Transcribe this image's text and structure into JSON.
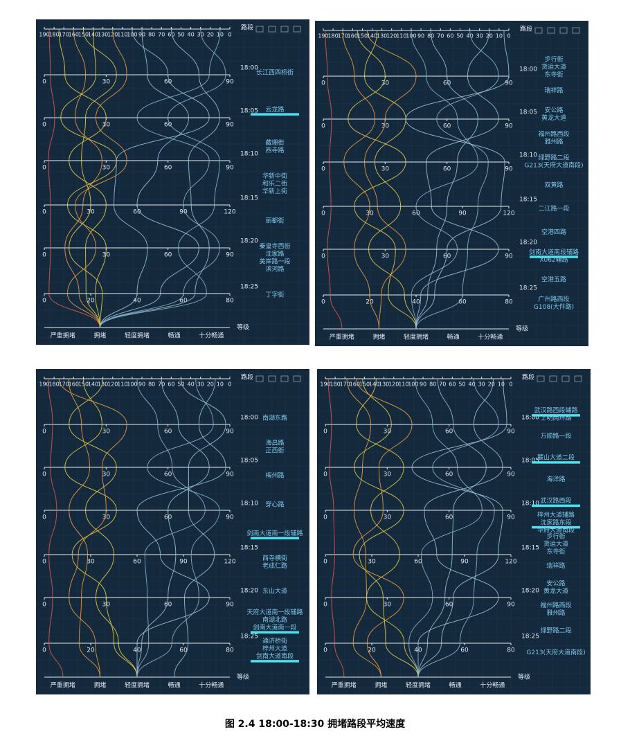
{
  "caption": "图 2.4 18:00-18:30 拥堵路段平均速度",
  "chart_data": [
    {
      "type": "parallel",
      "top_axis": {
        "name": "路段",
        "xlim": [
          190,
          0
        ],
        "ticks": [
          190,
          180,
          170,
          160,
          150,
          140,
          130,
          120,
          110,
          100,
          90,
          80,
          70,
          60,
          50,
          40,
          30,
          20,
          10,
          0
        ]
      },
      "time_axes": [
        {
          "name": "18:00",
          "lim": [
            0,
            90
          ],
          "ticks": [
            0,
            30,
            60,
            90
          ]
        },
        {
          "name": "18:05",
          "lim": [
            0,
            90
          ],
          "ticks": [
            0,
            30,
            60,
            90
          ]
        },
        {
          "name": "18:10",
          "lim": [
            0,
            90
          ],
          "ticks": [
            0,
            30,
            60,
            90
          ]
        },
        {
          "name": "18:15",
          "lim": [
            0,
            120
          ],
          "ticks": [
            0,
            30,
            60,
            90,
            120
          ]
        },
        {
          "name": "18:20",
          "lim": [
            0,
            90
          ],
          "ticks": [
            0,
            30,
            60,
            90
          ]
        },
        {
          "name": "18:25",
          "lim": [
            0,
            80
          ],
          "ticks": [
            0,
            20,
            40,
            60,
            80
          ]
        }
      ],
      "grade_axis": {
        "name": "等级",
        "categories": [
          "严重拥堵",
          "拥堵",
          "轻度拥堵",
          "畅通",
          "十分畅通"
        ]
      },
      "roads": [
        [
          "长江西四桥街"
        ],
        [
          {
            "text": "云龙路",
            "highlight": true
          }
        ],
        [
          "藏珊街",
          "西寺路"
        ],
        [
          "华新中街",
          "和乐二街",
          "华新上街"
        ],
        [
          "丽都街"
        ],
        [
          "秦皇寺西街",
          "沈家路",
          "美岸路一段",
          "滨河路"
        ],
        [
          "丁字街"
        ]
      ],
      "lines": [
        {
          "color": "#e05a4f",
          "values": [
            185,
            3,
            5,
            2,
            4,
            3,
            2
          ],
          "grade": "拥堵"
        },
        {
          "color": "#f0a040",
          "values": [
            160,
            20,
            15,
            28,
            25,
            10,
            15
          ],
          "grade": "拥堵"
        },
        {
          "color": "#e8d24a",
          "values": [
            175,
            10,
            30,
            12,
            40,
            20,
            18
          ],
          "grade": "拥堵"
        },
        {
          "color": "#e8d24a",
          "values": [
            140,
            25,
            8,
            35,
            15,
            30,
            22
          ],
          "grade": "拥堵"
        },
        {
          "color": "#e8d24a",
          "values": [
            150,
            35,
            20,
            18,
            30,
            12,
            25
          ],
          "grade": "拥堵"
        },
        {
          "color": "#f0a040",
          "values": [
            120,
            40,
            25,
            40,
            20,
            25,
            10
          ],
          "grade": "拥堵"
        },
        {
          "color": "#9fc4d8",
          "values": [
            60,
            75,
            85,
            70,
            95,
            80,
            65
          ],
          "grade": "拥堵"
        },
        {
          "color": "#8ab4cf",
          "values": [
            30,
            88,
            60,
            85,
            110,
            65,
            70
          ],
          "grade": "拥堵"
        },
        {
          "color": "#9fc4d8",
          "values": [
            90,
            50,
            70,
            55,
            60,
            75,
            50
          ],
          "grade": "拥堵"
        },
        {
          "color": "#8ab4cf",
          "values": [
            10,
            80,
            45,
            80,
            90,
            85,
            60
          ],
          "grade": "拥堵"
        },
        {
          "color": "#9fc4d8",
          "values": [
            100,
            60,
            80,
            35,
            45,
            50,
            40
          ],
          "grade": "拥堵"
        }
      ]
    },
    {
      "type": "parallel",
      "top_axis": {
        "name": "路段",
        "xlim": [
          190,
          0
        ],
        "ticks": [
          190,
          180,
          170,
          160,
          150,
          140,
          130,
          120,
          110,
          100,
          90,
          80,
          70,
          60,
          50,
          40,
          30,
          20,
          10,
          0
        ]
      },
      "time_axes": [
        {
          "name": "18:00",
          "lim": [
            0,
            90
          ],
          "ticks": [
            0,
            30,
            60,
            90
          ]
        },
        {
          "name": "18:05",
          "lim": [
            0,
            90
          ],
          "ticks": [
            0,
            30,
            60,
            90
          ]
        },
        {
          "name": "18:10",
          "lim": [
            0,
            90
          ],
          "ticks": [
            0,
            30,
            60,
            90
          ]
        },
        {
          "name": "18:15",
          "lim": [
            0,
            120
          ],
          "ticks": [
            0,
            30,
            60,
            90,
            120
          ]
        },
        {
          "name": "18:20",
          "lim": [
            0,
            90
          ],
          "ticks": [
            0,
            30,
            60,
            90
          ]
        },
        {
          "name": "18:25",
          "lim": [
            0,
            80
          ],
          "ticks": [
            0,
            20,
            40,
            60,
            80
          ]
        }
      ],
      "grade_axis": {
        "name": "等级",
        "categories": [
          "严重拥堵",
          "拥堵",
          "轻度拥堵",
          "畅通",
          "十分畅通"
        ]
      },
      "roads": [
        [
          "步行街",
          "货运大道",
          "东寺街"
        ],
        [
          "瑞祥路"
        ],
        [
          "安公路",
          "黄龙大道"
        ],
        [
          "福州路西段",
          "雅州路"
        ],
        [
          "绿野路二段",
          "G213(天府大道南段)"
        ],
        [
          "双黄路"
        ],
        [
          "二江路一段"
        ],
        [
          "空港四路"
        ],
        [
          {
            "text": "剑南大道南段辅路",
            "highlight": true
          },
          "X062辅路"
        ],
        [
          "空港五路"
        ],
        [
          "广州路西段",
          "G108(大件路)"
        ]
      ],
      "lines": [
        {
          "color": "#e05a4f",
          "values": [
            188,
            2,
            4,
            3,
            5,
            2,
            3
          ],
          "grade": "严重拥堵"
        },
        {
          "color": "#f0a040",
          "values": [
            170,
            15,
            25,
            10,
            30,
            15,
            20
          ],
          "grade": "拥堵"
        },
        {
          "color": "#e8d24a",
          "values": [
            155,
            30,
            12,
            40,
            20,
            35,
            28
          ],
          "grade": "轻度拥堵"
        },
        {
          "color": "#e8d24a",
          "values": [
            135,
            20,
            40,
            25,
            50,
            22,
            35
          ],
          "grade": "轻度拥堵"
        },
        {
          "color": "#f0a040",
          "values": [
            145,
            45,
            30,
            20,
            35,
            40,
            25
          ],
          "grade": "拥堵"
        },
        {
          "color": "#9fc4d8",
          "values": [
            80,
            60,
            75,
            65,
            80,
            55,
            45
          ],
          "grade": "轻度拥堵"
        },
        {
          "color": "#8ab4cf",
          "values": [
            40,
            85,
            55,
            80,
            100,
            70,
            60
          ],
          "grade": "轻度拥堵"
        },
        {
          "color": "#9fc4d8",
          "values": [
            20,
            70,
            85,
            50,
            70,
            85,
            42
          ],
          "grade": "轻度拥堵"
        },
        {
          "color": "#8ab4cf",
          "values": [
            100,
            50,
            65,
            75,
            60,
            65,
            38
          ],
          "grade": "轻度拥堵"
        },
        {
          "color": "#9fc4d8",
          "values": [
            5,
            90,
            40,
            88,
            115,
            60,
            48
          ],
          "grade": "轻度拥堵"
        }
      ]
    },
    {
      "type": "parallel",
      "top_axis": {
        "name": "路段",
        "xlim": [
          190,
          0
        ],
        "ticks": [
          190,
          180,
          170,
          160,
          150,
          140,
          130,
          120,
          110,
          100,
          90,
          80,
          70,
          60,
          50,
          40,
          30,
          20,
          10,
          0
        ]
      },
      "time_axes": [
        {
          "name": "18:00",
          "lim": [
            0,
            90
          ],
          "ticks": [
            0,
            30,
            60,
            90
          ]
        },
        {
          "name": "18:05",
          "lim": [
            0,
            90
          ],
          "ticks": [
            0,
            30,
            60,
            90
          ]
        },
        {
          "name": "18:10",
          "lim": [
            0,
            90
          ],
          "ticks": [
            0,
            30,
            60,
            90
          ]
        },
        {
          "name": "18:15",
          "lim": [
            0,
            120
          ],
          "ticks": [
            0,
            30,
            60,
            90,
            120
          ]
        },
        {
          "name": "18:20",
          "lim": [
            0,
            90
          ],
          "ticks": [
            0,
            30,
            60,
            90
          ]
        },
        {
          "name": "18:25",
          "lim": [
            0,
            80
          ],
          "ticks": [
            0,
            20,
            40,
            60,
            80
          ]
        }
      ],
      "grade_axis": {
        "name": "等级",
        "categories": [
          "严重拥堵",
          "拥堵",
          "轻度拥堵",
          "畅通",
          "十分畅通"
        ]
      },
      "roads": [
        [
          "南湖东路"
        ],
        [
          "海昌路",
          "正西街"
        ],
        [
          "梅州路"
        ],
        [
          "穿心路"
        ],
        [
          {
            "text": "剑南大道南一段辅路",
            "highlight": true
          }
        ],
        [
          "西寺横街",
          "老成仁路"
        ],
        [
          "东山大道"
        ],
        [
          "天府大道南一段辅路",
          "南湖北路",
          {
            "text": "剑南大道南一段",
            "highlight": true
          }
        ],
        [
          "通济桥街",
          "梓州大道",
          {
            "text": "剑南大道南段",
            "highlight": true
          }
        ]
      ],
      "lines": [
        {
          "color": "#e05a4f",
          "values": [
            186,
            4,
            3,
            6,
            3,
            4,
            2
          ],
          "grade": "严重拥堵"
        },
        {
          "color": "#f0a040",
          "values": [
            165,
            18,
            22,
            12,
            28,
            18,
            15
          ],
          "grade": "拥堵"
        },
        {
          "color": "#e8d24a",
          "values": [
            150,
            28,
            10,
            35,
            18,
            30,
            30
          ],
          "grade": "轻度拥堵"
        },
        {
          "color": "#e8d24a",
          "values": [
            130,
            12,
            35,
            20,
            45,
            25,
            32
          ],
          "grade": "轻度拥堵"
        },
        {
          "color": "#f0a040",
          "values": [
            175,
            40,
            28,
            30,
            22,
            12,
            22
          ],
          "grade": "拥堵"
        },
        {
          "color": "#9fc4d8",
          "values": [
            70,
            65,
            80,
            60,
            85,
            60,
            42
          ],
          "grade": "轻度拥堵"
        },
        {
          "color": "#8ab4cf",
          "values": [
            35,
            82,
            50,
            85,
            95,
            75,
            55
          ],
          "grade": "轻度拥堵"
        },
        {
          "color": "#9fc4d8",
          "values": [
            15,
            75,
            88,
            45,
            75,
            80,
            40
          ],
          "grade": "轻度拥堵"
        },
        {
          "color": "#8ab4cf",
          "values": [
            95,
            55,
            62,
            78,
            65,
            50,
            45
          ],
          "grade": "轻度拥堵"
        },
        {
          "color": "#9fc4d8",
          "values": [
            50,
            88,
            70,
            70,
            110,
            68,
            62
          ],
          "grade": "畅通"
        }
      ]
    },
    {
      "type": "parallel",
      "top_axis": {
        "name": "路段",
        "xlim": [
          190,
          0
        ],
        "ticks": [
          190,
          180,
          170,
          160,
          150,
          140,
          130,
          120,
          110,
          100,
          90,
          80,
          70,
          60,
          50,
          40,
          30,
          20,
          10,
          0
        ]
      },
      "time_axes": [
        {
          "name": "18:00",
          "lim": [
            0,
            90
          ],
          "ticks": [
            0,
            30,
            60,
            90
          ]
        },
        {
          "name": "18:05",
          "lim": [
            0,
            90
          ],
          "ticks": [
            0,
            30,
            60,
            90
          ]
        },
        {
          "name": "18:10",
          "lim": [
            0,
            90
          ],
          "ticks": [
            0,
            30,
            60,
            90
          ]
        },
        {
          "name": "18:15",
          "lim": [
            0,
            120
          ],
          "ticks": [
            0,
            30,
            60,
            90,
            120
          ]
        },
        {
          "name": "18:20",
          "lim": [
            0,
            90
          ],
          "ticks": [
            0,
            30,
            60,
            90
          ]
        },
        {
          "name": "18:25",
          "lim": [
            0,
            80
          ],
          "ticks": [
            0,
            20,
            40,
            60,
            80
          ]
        }
      ],
      "grade_axis": {
        "name": "等级",
        "categories": [
          "严重拥堵",
          "拥堵",
          "轻度拥堵",
          "畅通",
          "十分畅通"
        ]
      },
      "roads": [
        [
          {
            "text": "武汉路西段辅路",
            "highlight": true
          },
          "上明两环路"
        ],
        [
          "万顺路一段"
        ],
        [
          {
            "text": "麓山大道二段",
            "highlight": true
          }
        ],
        [
          "海洋路"
        ],
        [
          {
            "text": "武汉路西段",
            "highlight": true
          }
        ],
        [
          "梓州大道辅路",
          {
            "text": "沈家路东段",
            "highlight": true
          },
          "华府大道南段"
        ],
        [
          "步行街",
          "货运大道",
          "东寺街"
        ],
        [
          "瑞祥路"
        ],
        [
          "安公路",
          "黄龙大道"
        ],
        [
          "福州路西段",
          "雅州路"
        ],
        [
          "绿野路二段"
        ],
        [
          "G213(天府大道南段)"
        ]
      ],
      "lines": [
        {
          "color": "#e05a4f",
          "values": [
            187,
            3,
            2,
            4,
            6,
            3,
            4
          ],
          "grade": "严重拥堵"
        },
        {
          "color": "#f0a040",
          "values": [
            168,
            22,
            18,
            14,
            26,
            20,
            12
          ],
          "grade": "拥堵"
        },
        {
          "color": "#e8d24a",
          "values": [
            152,
            32,
            14,
            38,
            22,
            28,
            26
          ],
          "grade": "轻度拥堵"
        },
        {
          "color": "#e8d24a",
          "values": [
            138,
            15,
            38,
            22,
            48,
            20,
            34
          ],
          "grade": "轻度拥堵"
        },
        {
          "color": "#f0a040",
          "values": [
            158,
            42,
            26,
            28,
            18,
            38,
            18
          ],
          "grade": "拥堵"
        },
        {
          "color": "#9fc4d8",
          "values": [
            75,
            62,
            78,
            62,
            82,
            58,
            44
          ],
          "grade": "轻度拥堵"
        },
        {
          "color": "#8ab4cf",
          "values": [
            38,
            84,
            52,
            82,
            98,
            72,
            58
          ],
          "grade": "轻度拥堵"
        },
        {
          "color": "#9fc4d8",
          "values": [
            18,
            72,
            86,
            48,
            72,
            84,
            40
          ],
          "grade": "轻度拥堵"
        },
        {
          "color": "#8ab4cf",
          "values": [
            98,
            52,
            64,
            76,
            62,
            52,
            36
          ],
          "grade": "轻度拥堵"
        },
        {
          "color": "#9fc4d8",
          "values": [
            8,
            88,
            42,
            86,
            112,
            62,
            50
          ],
          "grade": "轻度拥堵"
        }
      ]
    }
  ]
}
